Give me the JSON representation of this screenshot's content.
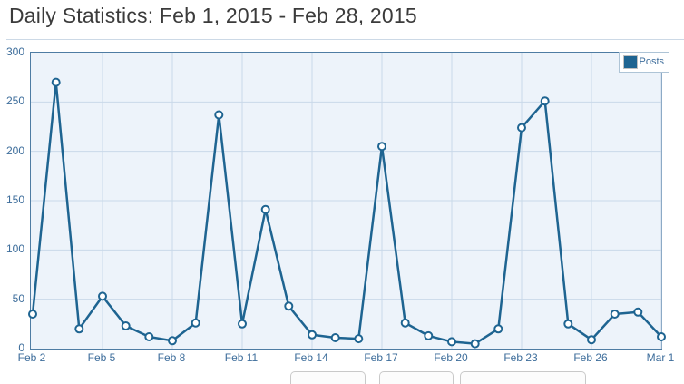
{
  "header": {
    "title": "Daily Statistics: Feb 1, 2015 - Feb 28, 2015"
  },
  "legend": {
    "label": "Posts",
    "position": "top-right"
  },
  "colors": {
    "line": "#1e6491",
    "marker_fill": "#ffffff",
    "plot_background": "#edf3fa",
    "plot_border": "#4e7ca3",
    "gridline": "#c9d9e9",
    "tick_label": "#3d6d9b",
    "title_text": "#3b3b3b"
  },
  "chart_data": {
    "type": "line",
    "title": "Daily Statistics: Feb 1, 2015 - Feb 28, 2015",
    "x": [
      "Feb 2",
      "Feb 3",
      "Feb 4",
      "Feb 5",
      "Feb 6",
      "Feb 7",
      "Feb 8",
      "Feb 9",
      "Feb 10",
      "Feb 11",
      "Feb 12",
      "Feb 13",
      "Feb 14",
      "Feb 15",
      "Feb 16",
      "Feb 17",
      "Feb 18",
      "Feb 19",
      "Feb 20",
      "Feb 21",
      "Feb 22",
      "Feb 23",
      "Feb 24",
      "Feb 25",
      "Feb 26",
      "Feb 27",
      "Feb 28",
      "Mar 1"
    ],
    "series": [
      {
        "name": "Posts",
        "values": [
          35,
          270,
          20,
          53,
          23,
          12,
          8,
          26,
          237,
          25,
          141,
          43,
          14,
          11,
          10,
          205,
          26,
          13,
          7,
          5,
          20,
          224,
          251,
          25,
          9,
          35,
          37,
          12
        ]
      }
    ],
    "x_tick_labels": [
      "Feb 2",
      "Feb 5",
      "Feb 8",
      "Feb 11",
      "Feb 14",
      "Feb 17",
      "Feb 20",
      "Feb 23",
      "Feb 26",
      "Mar 1"
    ],
    "x_tick_every_days": 3,
    "y_ticks": [
      0,
      50,
      100,
      150,
      200,
      250,
      300
    ],
    "ylim": [
      0,
      300
    ],
    "grid": true,
    "legend_position": "top-right",
    "xlabel": "",
    "ylabel": ""
  }
}
